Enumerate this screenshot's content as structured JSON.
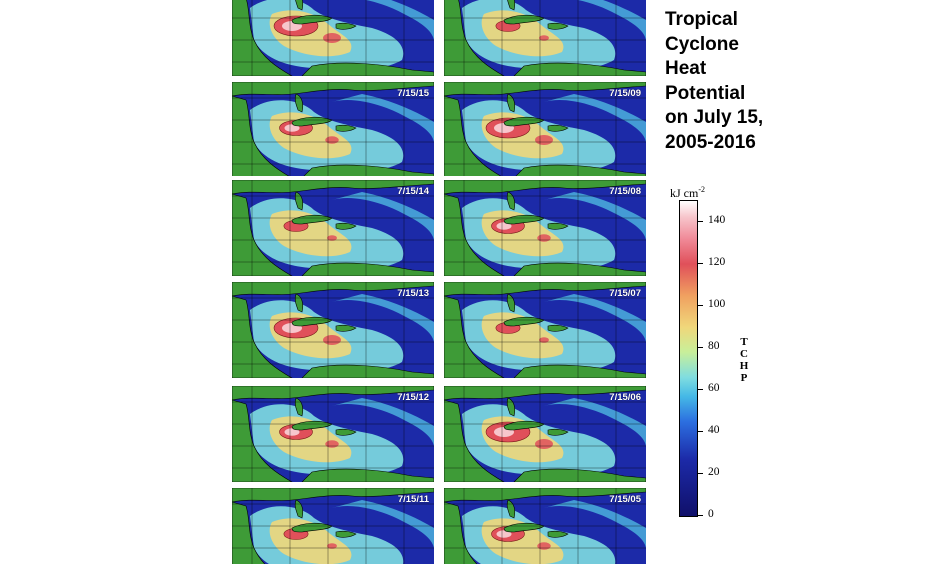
{
  "title_lines": [
    "Tropical",
    "Cyclone",
    "Heat",
    "Potential",
    "on July 15,",
    "2005-2016"
  ],
  "panels": [
    {
      "label": ""
    },
    {
      "label": ""
    },
    {
      "label": "7/15/15"
    },
    {
      "label": "7/15/09"
    },
    {
      "label": "7/15/14"
    },
    {
      "label": "7/15/08"
    },
    {
      "label": "7/15/13"
    },
    {
      "label": "7/15/07"
    },
    {
      "label": "7/15/12"
    },
    {
      "label": "7/15/06"
    },
    {
      "label": "7/15/11"
    },
    {
      "label": "7/15/05"
    }
  ],
  "colorbar": {
    "units_base": "kJ cm",
    "units_exp": "-2",
    "variable_letters": [
      "T",
      "C",
      "H",
      "P"
    ],
    "ticks": [
      "140",
      "120",
      "100",
      "80",
      "60",
      "40",
      "20",
      "0"
    ],
    "tick_values": [
      140,
      120,
      100,
      80,
      60,
      40,
      20,
      0
    ],
    "range": [
      0,
      150
    ],
    "colors": {
      "land": "#3e9b37",
      "ocean_low": "#1c2aa8",
      "ocean_mid": "#7fdde0",
      "ocean_warm": "#f0d77a",
      "ocean_hot": "#e0505a",
      "ocean_max": "#f7c6cc"
    }
  }
}
